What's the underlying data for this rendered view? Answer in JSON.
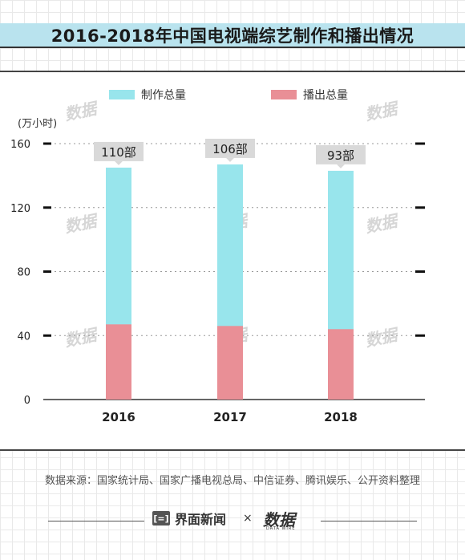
{
  "title": "2016-2018年中国电视端综艺制作和播出情况",
  "unit_label": "(万小时)",
  "legend": {
    "production": "制作总量",
    "broadcast": "播出总量"
  },
  "colors": {
    "production": "#98e5ec",
    "broadcast": "#e98f96",
    "callout_bg": "#d9d9d9",
    "title_band": "#b9e3ee"
  },
  "watermark_text": "数据",
  "source": "数据来源：国家统计局、国家广播电视总局、中信证券、腾讯娱乐、公开资料整理",
  "footer": {
    "brand": "界面新闻",
    "brand_icon": "[=]",
    "separator": "×",
    "logo": "数据",
    "logo_sub": "DATA WIRE"
  },
  "chart_data": {
    "type": "bar",
    "stacked": false,
    "categories": [
      "2016",
      "2017",
      "2018"
    ],
    "series": [
      {
        "name": "制作总量",
        "values": [
          145,
          147,
          143
        ]
      },
      {
        "name": "播出总量",
        "values": [
          47,
          46,
          44
        ]
      }
    ],
    "data_labels": [
      "110部",
      "106部",
      "93部"
    ],
    "ylabel": "(万小时)",
    "ylim": [
      0,
      160
    ],
    "yticks": [
      0,
      40,
      80,
      120,
      160
    ],
    "grid": "dotted horizontal",
    "legend_position": "top"
  }
}
